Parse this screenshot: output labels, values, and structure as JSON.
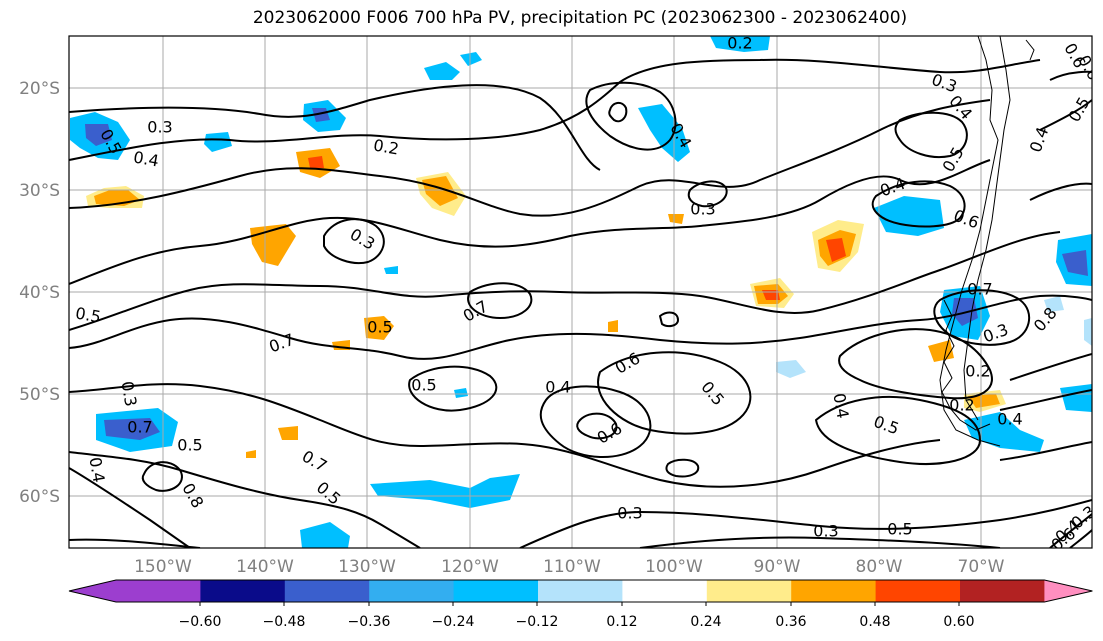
{
  "title": "2023062000 F006 700 hPa PV, precipitation PC (2023062300 - 2023062400)",
  "map": {
    "lon_ticks": [
      "150°W",
      "140°W",
      "130°W",
      "120°W",
      "110°W",
      "100°W",
      "90°W",
      "80°W",
      "70°W"
    ],
    "lat_ticks": [
      "20°S",
      "30°S",
      "40°S",
      "50°S",
      "60°S"
    ],
    "contour_labels": [
      "0.3",
      "0.4",
      "0.2",
      "0.5",
      "0.3",
      "0.5",
      "0.7",
      "0.5",
      "0.3",
      "0.7",
      "0.5",
      "0.4",
      "0.8",
      "0.7",
      "0.5",
      "0.3",
      "0.4",
      "0.6",
      "0.6",
      "0.5",
      "0.7",
      "0.4",
      "0.5",
      "0.5",
      "0.3",
      "0.3",
      "0.4",
      "0.6",
      "0.7",
      "0.3",
      "0.2",
      "0.4",
      "0.2",
      "0.3",
      "0.4",
      "0.5",
      "0.4",
      "0.5",
      "0.6",
      "0.4",
      "0.5",
      "0.6",
      "0.3",
      "0.4",
      "0.2",
      "0.6",
      "0.8"
    ],
    "contour_color": "#000000",
    "grid_color": "#aaaaaa"
  },
  "colorbar": {
    "colors": [
      "#9c3ecf",
      "#0a0b8a",
      "#3a5fcd",
      "#33aef0",
      "#00bfff",
      "#b4e3fb",
      "#ffffff",
      "#ffec8b",
      "#ffa500",
      "#ff4500",
      "#b22222",
      "#ff88aa",
      "#ff8fc0"
    ],
    "tick_labels": [
      "−0.60",
      "−0.48",
      "−0.36",
      "−0.24",
      "−0.12",
      "0.12",
      "0.24",
      "0.36",
      "0.48",
      "0.60"
    ]
  }
}
